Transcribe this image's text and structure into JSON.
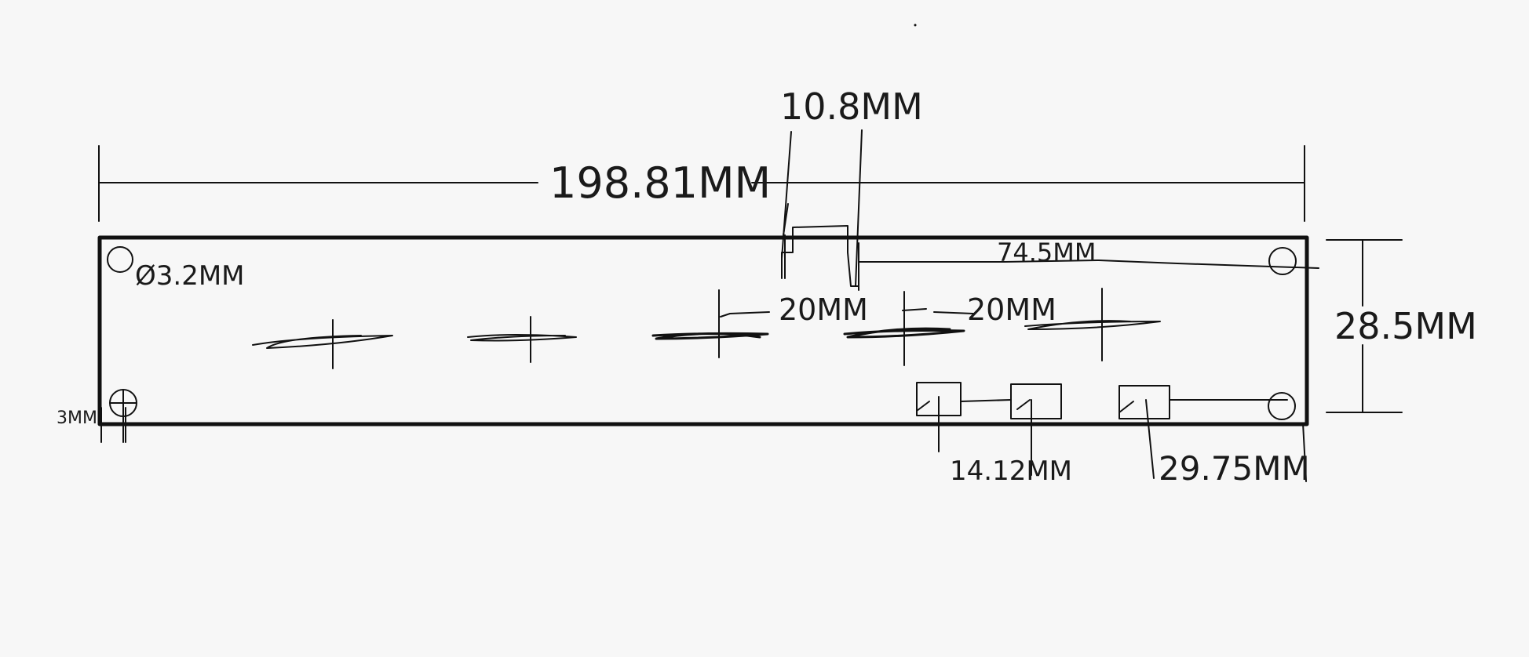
{
  "canvas": {
    "background": "#f7f7f7",
    "ink_color": "#111111"
  },
  "dimensions": {
    "overall_length": "198.81MM",
    "height": "28.5MM",
    "cutout_width": "10.8MM",
    "cutout_to_right_hole": "74.5MM",
    "spacing_a": "20MM",
    "spacing_b": "20MM",
    "hole_diameter": "Ø3.2MM",
    "hole_edge_offset": "3MM",
    "slot_spacing": "14.12MM",
    "slot_to_edge": "29.75MM"
  },
  "features": {
    "mounting_holes": 4,
    "cross_marks": 5,
    "slots_bottom": 3,
    "cutout_top": 1
  }
}
